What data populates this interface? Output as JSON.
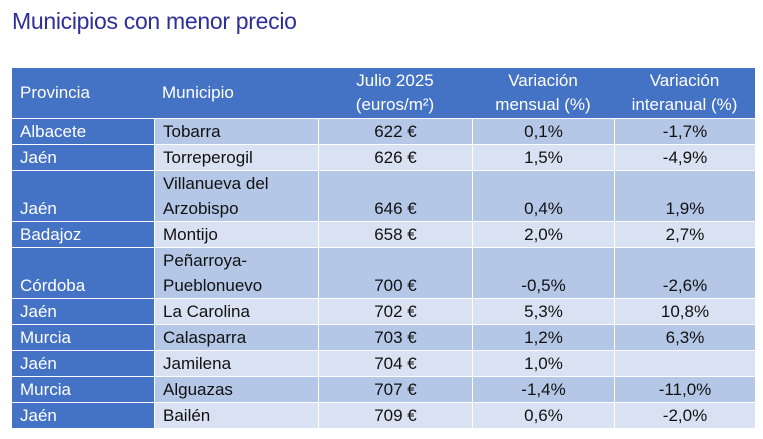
{
  "title": "Municipios con menor precio",
  "table": {
    "headers": {
      "provincia": "Provincia",
      "municipio": "Municipio",
      "precio_line1": "Julio 2025",
      "precio_line2": "(euros/m²)",
      "mensual_line1": "Variación",
      "mensual_line2": "mensual (%)",
      "interanual_line1": "Variación",
      "interanual_line2": "interanual (%)"
    },
    "rows": [
      {
        "provincia": "Albacete",
        "municipio_l1": "Tobarra",
        "municipio_l2": "",
        "precio": "622 €",
        "mensual": "0,1%",
        "interanual": "-1,7%"
      },
      {
        "provincia": "Jaén",
        "municipio_l1": "Torreperogil",
        "municipio_l2": "",
        "precio": "626 €",
        "mensual": "1,5%",
        "interanual": "-4,9%"
      },
      {
        "provincia": "Jaén",
        "municipio_l1": "Villanueva del",
        "municipio_l2": "Arzobispo",
        "precio": "646 €",
        "mensual": "0,4%",
        "interanual": "1,9%"
      },
      {
        "provincia": "Badajoz",
        "municipio_l1": "Montijo",
        "municipio_l2": "",
        "precio": "658 €",
        "mensual": "2,0%",
        "interanual": "2,7%"
      },
      {
        "provincia": "Córdoba",
        "municipio_l1": "Peñarroya-",
        "municipio_l2": "Pueblonuevo",
        "precio": "700 €",
        "mensual": "-0,5%",
        "interanual": "-2,6%"
      },
      {
        "provincia": "Jaén",
        "municipio_l1": "La Carolina",
        "municipio_l2": "",
        "precio": "702 €",
        "mensual": "5,3%",
        "interanual": "10,8%"
      },
      {
        "provincia": "Murcia",
        "municipio_l1": "Calasparra",
        "municipio_l2": "",
        "precio": "703 €",
        "mensual": "1,2%",
        "interanual": "6,3%"
      },
      {
        "provincia": "Jaén",
        "municipio_l1": "Jamilena",
        "municipio_l2": "",
        "precio": "704 €",
        "mensual": "1,0%",
        "interanual": ""
      },
      {
        "provincia": "Murcia",
        "municipio_l1": "Alguazas",
        "municipio_l2": "",
        "precio": "707 €",
        "mensual": "-1,4%",
        "interanual": "-11,0%"
      },
      {
        "provincia": "Jaén",
        "municipio_l1": "Bailén",
        "municipio_l2": "",
        "precio": "709 €",
        "mensual": "0,6%",
        "interanual": "-2,0%"
      }
    ]
  },
  "colors": {
    "header_bg": "#4472c4",
    "row_dark": "#b4c7e7",
    "row_light": "#d9e2f3",
    "negative": "#c00000",
    "title": "#2e2e9a"
  }
}
